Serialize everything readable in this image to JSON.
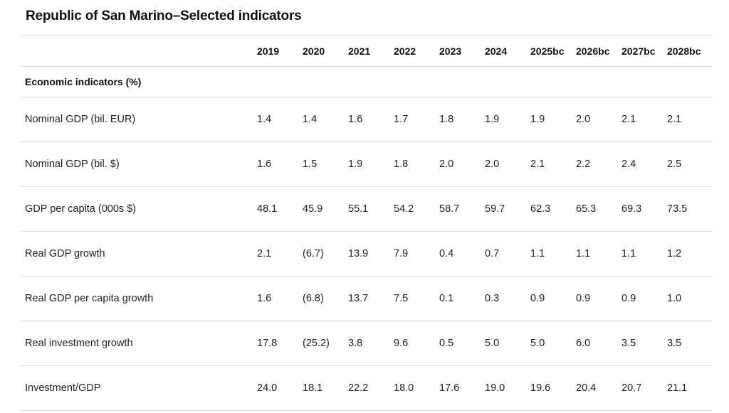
{
  "title": "Republic of San Marino–Selected indicators",
  "columns": [
    "2019",
    "2020",
    "2021",
    "2022",
    "2023",
    "2024",
    "2025bc",
    "2026bc",
    "2027bc",
    "2028bc"
  ],
  "section": "Economic indicators (%)",
  "rows": [
    {
      "label": "Nominal GDP (bil. EUR)",
      "values": [
        "1.4",
        "1.4",
        "1.6",
        "1.7",
        "1.8",
        "1.9",
        "1.9",
        "2.0",
        "2.1",
        "2.1"
      ]
    },
    {
      "label": "Nominal GDP (bil. $)",
      "values": [
        "1.6",
        "1.5",
        "1.9",
        "1.8",
        "2.0",
        "2.0",
        "2.1",
        "2.2",
        "2.4",
        "2.5"
      ]
    },
    {
      "label": "GDP per capita (000s $)",
      "values": [
        "48.1",
        "45.9",
        "55.1",
        "54.2",
        "58.7",
        "59.7",
        "62.3",
        "65.3",
        "69.3",
        "73.5"
      ]
    },
    {
      "label": "Real GDP growth",
      "values": [
        "2.1",
        "(6.7)",
        "13.9",
        "7.9",
        "0.4",
        "0.7",
        "1.1",
        "1.1",
        "1.1",
        "1.2"
      ]
    },
    {
      "label": "Real GDP per capita growth",
      "values": [
        "1.6",
        "(6.8)",
        "13.7",
        "7.5",
        "0.1",
        "0.3",
        "0.9",
        "0.9",
        "0.9",
        "1.0"
      ]
    },
    {
      "label": "Real investment growth",
      "values": [
        "17.8",
        "(25.2)",
        "3.8",
        "9.6",
        "0.5",
        "5.0",
        "5.0",
        "6.0",
        "3.5",
        "3.5"
      ]
    },
    {
      "label": "Investment/GDP",
      "values": [
        "24.0",
        "18.1",
        "22.2",
        "18.0",
        "17.6",
        "19.0",
        "19.6",
        "20.4",
        "20.7",
        "21.1"
      ]
    }
  ]
}
